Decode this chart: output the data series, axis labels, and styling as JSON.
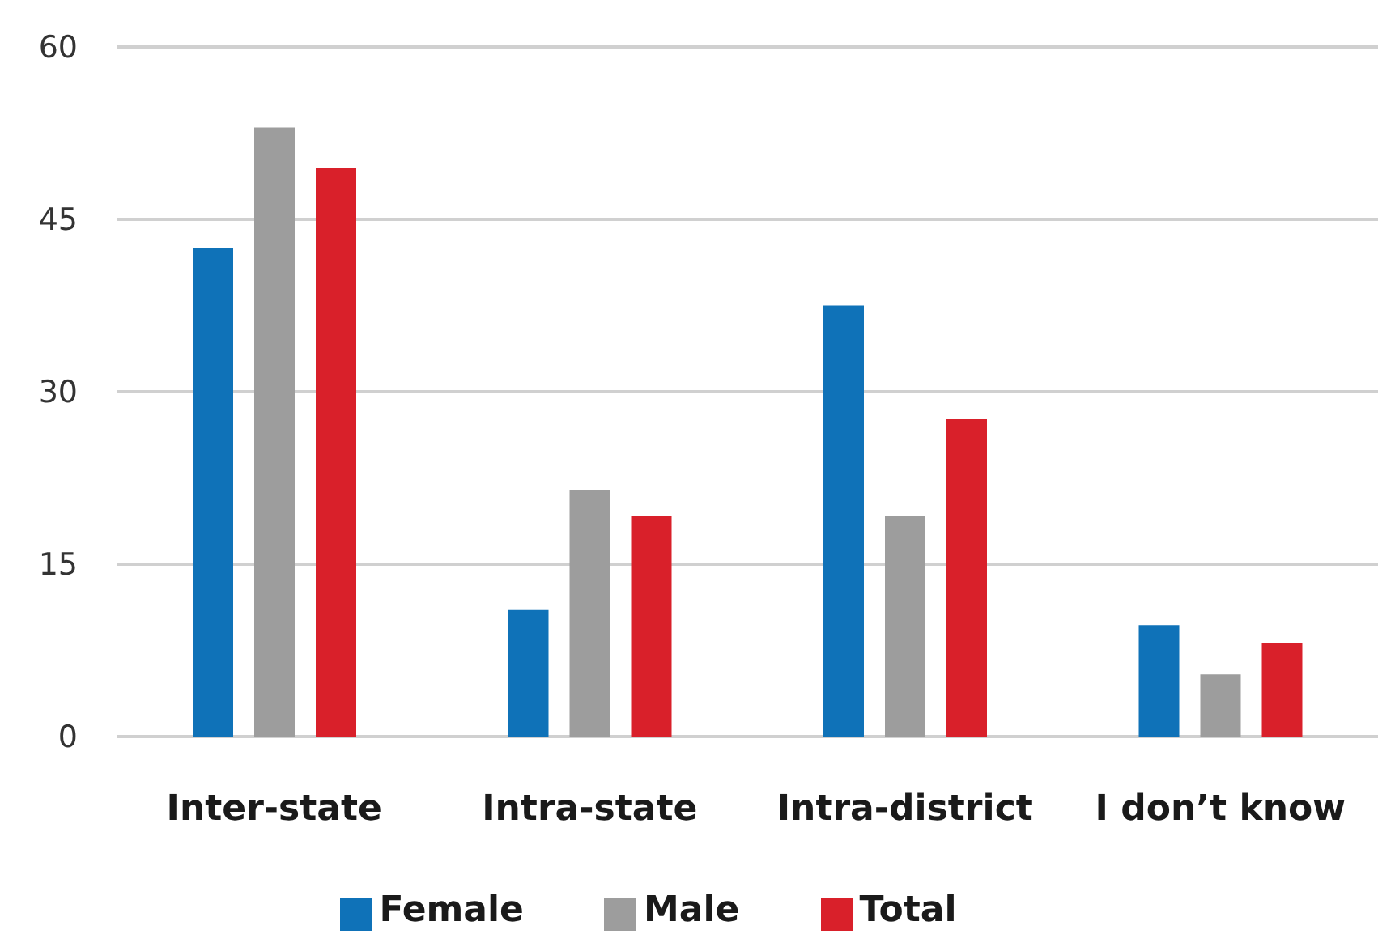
{
  "chart_data": {
    "type": "bar",
    "categories": [
      "Inter-state",
      "Intra-state",
      "Intra-district",
      "I don’t know"
    ],
    "series": [
      {
        "name": "Female",
        "color": "#0f72b8",
        "values": [
          42.5,
          11,
          37.5,
          9.7
        ]
      },
      {
        "name": "Male",
        "color": "#9d9d9d",
        "values": [
          53,
          21.4,
          19.2,
          5.4
        ]
      },
      {
        "name": "Total",
        "color": "#d9202a",
        "values": [
          49.5,
          19.2,
          27.6,
          8.1
        ]
      }
    ],
    "ylim": [
      0,
      60
    ],
    "yticks": [
      0,
      15,
      30,
      45,
      60
    ],
    "grid": "y",
    "legend": "bottom"
  }
}
